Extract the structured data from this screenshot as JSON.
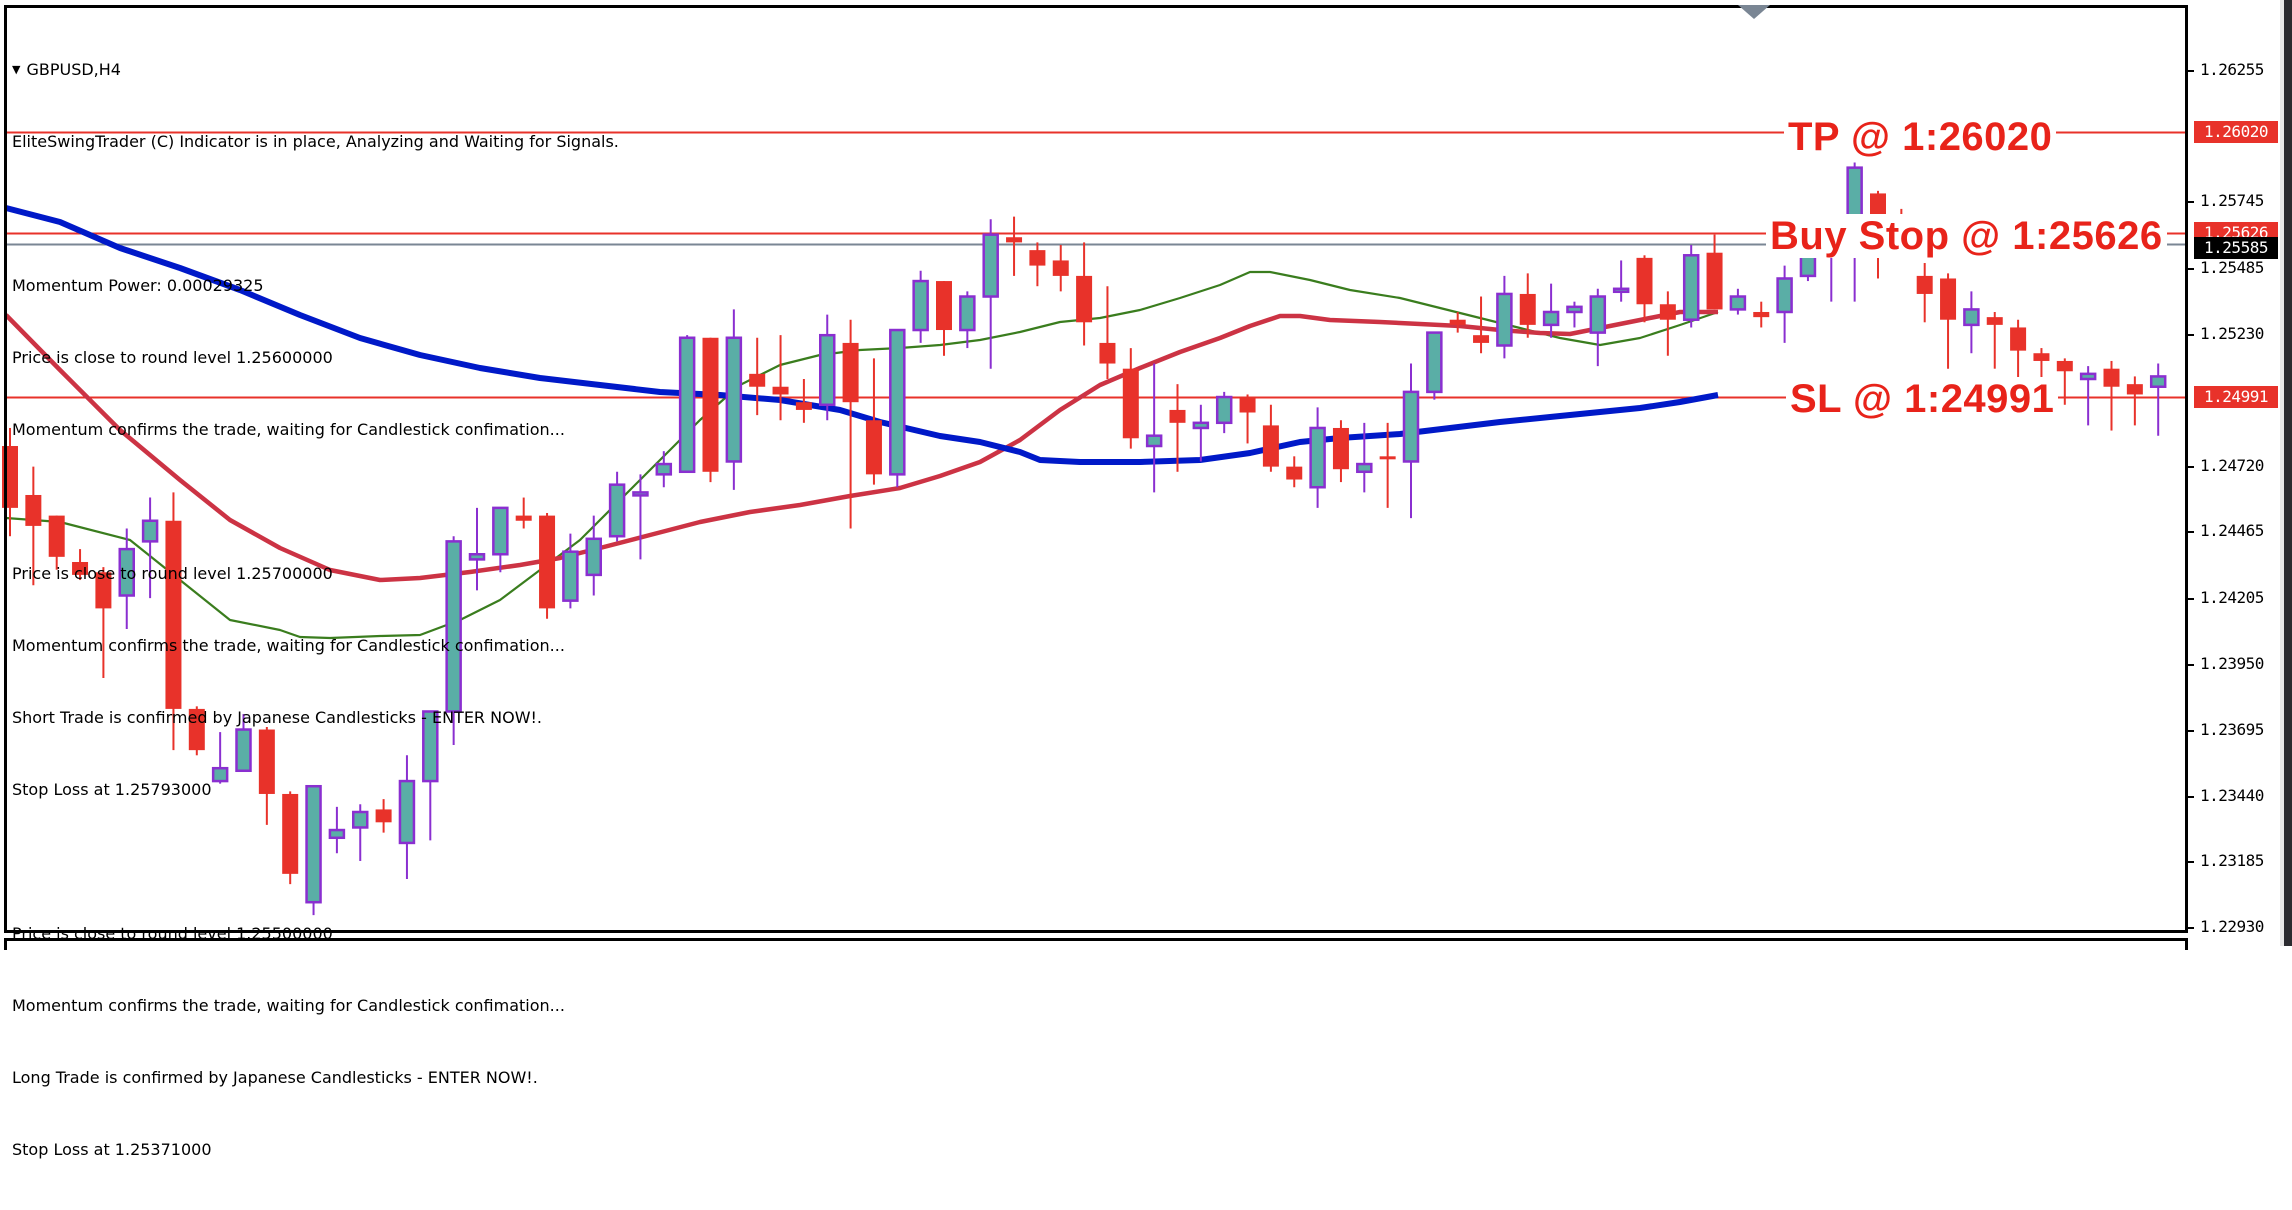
{
  "window": {
    "symbol": "GBPUSD",
    "timeframe": "H4",
    "title": "GBPUSD,H4"
  },
  "info_panel": {
    "lines": [
      "EliteSwingTrader (C) Indicator is in place, Analyzing and Waiting for Signals.",
      "",
      "Momentum Power: 0.00029325",
      "Price is close to round level 1.25600000",
      "Momentum confirms the trade, waiting for Candlestick confimation...",
      "",
      "Price is close to round level 1.25700000",
      "Momentum confirms the trade, waiting for Candlestick confimation...",
      "Short Trade is confirmed by Japanese Candlesticks - ENTER NOW!.",
      "Stop Loss at 1.25793000",
      "",
      "Price is close to round level 1.25500000",
      "Momentum confirms the trade, waiting for Candlestick confimation...",
      "Long Trade is confirmed by Japanese Candlesticks - ENTER NOW!.",
      "Stop Loss at 1.25371000"
    ]
  },
  "annotations": {
    "tp": "TP @ 1:26020",
    "buy_stop": "Buy Stop @ 1:25626",
    "sl": "SL @ 1:24991"
  },
  "price_tags": {
    "tp": "1.26020",
    "buy_stop": "1.25626",
    "bid": "1.25585",
    "sl": "1.24991"
  },
  "colors": {
    "bull_fill": "#5aaea6",
    "bull_outline": "#8a2fd0",
    "bear": "#e8322a",
    "level_line": "#e8322a",
    "bid_line": "#7a8694",
    "ma_fast": "#3a7d1e",
    "ma_mid": "#cc3344",
    "ma_slow": "#0019c8",
    "annotation_text": "#e8231a"
  },
  "chart_data": {
    "type": "candlestick",
    "title": "GBPUSD,H4",
    "xlabel": "",
    "ylabel": "",
    "ylim": [
      1.2285,
      1.2649
    ],
    "y_ticks": [
      "1.26255",
      "1.25745",
      "1.25485",
      "1.25230",
      "1.24720",
      "1.24465",
      "1.24205",
      "1.23950",
      "1.23695",
      "1.23440",
      "1.23185",
      "1.22930"
    ],
    "y_tick_values": [
      1.26255,
      1.25745,
      1.25485,
      1.2523,
      1.2472,
      1.24465,
      1.24205,
      1.2395,
      1.23695,
      1.2344,
      1.23185,
      1.2293
    ],
    "levels": [
      {
        "name": "TP",
        "price": 1.2602,
        "color": "#e8322a"
      },
      {
        "name": "Buy Stop",
        "price": 1.25626,
        "color": "#e8322a"
      },
      {
        "name": "Bid",
        "price": 1.25585,
        "color": "#7a8694"
      },
      {
        "name": "SL",
        "price": 1.24991,
        "color": "#e8322a"
      }
    ],
    "candles": [
      [
        1.248,
        1.2456,
        1.2487,
        1.2445
      ],
      [
        1.2461,
        1.2449,
        1.2472,
        1.2426
      ],
      [
        1.2453,
        1.2437,
        1.2453,
        1.2432
      ],
      [
        1.2435,
        1.243,
        1.244,
        1.2428
      ],
      [
        1.2431,
        1.2417,
        1.2433,
        1.239
      ],
      [
        1.2422,
        1.244,
        1.2448,
        1.2409
      ],
      [
        1.2443,
        1.2451,
        1.246,
        1.2421
      ],
      [
        1.2451,
        1.2378,
        1.2462,
        1.2362
      ],
      [
        1.2378,
        1.2362,
        1.2379,
        1.236
      ],
      [
        1.235,
        1.2355,
        1.2369,
        1.2349
      ],
      [
        1.2354,
        1.237,
        1.2376,
        1.237
      ],
      [
        1.237,
        1.2345,
        1.2371,
        1.2333
      ],
      [
        1.2345,
        1.2314,
        1.2346,
        1.231
      ],
      [
        1.2303,
        1.2348,
        1.2348,
        1.2298
      ],
      [
        1.2328,
        1.2331,
        1.234,
        1.2322
      ],
      [
        1.2332,
        1.2338,
        1.2341,
        1.2319
      ],
      [
        1.2339,
        1.2334,
        1.2343,
        1.233
      ],
      [
        1.2326,
        1.235,
        1.236,
        1.2312
      ],
      [
        1.235,
        1.2377,
        1.2377,
        1.2327
      ],
      [
        1.2377,
        1.2443,
        1.2445,
        1.2364
      ],
      [
        1.2436,
        1.2438,
        1.2456,
        1.2424
      ],
      [
        1.2438,
        1.2456,
        1.2456,
        1.2431
      ],
      [
        1.2453,
        1.2451,
        1.246,
        1.2448
      ],
      [
        1.2453,
        1.2417,
        1.2454,
        1.2413
      ],
      [
        1.242,
        1.2439,
        1.2446,
        1.2417
      ],
      [
        1.243,
        1.2444,
        1.2453,
        1.2422
      ],
      [
        1.2445,
        1.2465,
        1.247,
        1.2443
      ],
      [
        1.2462,
        1.2462,
        1.2469,
        1.2436
      ],
      [
        1.2469,
        1.2473,
        1.2478,
        1.2464
      ],
      [
        1.247,
        1.2522,
        1.2523,
        1.247
      ],
      [
        1.2522,
        1.247,
        1.2522,
        1.2466
      ],
      [
        1.2474,
        1.2522,
        1.2533,
        1.2463
      ],
      [
        1.2508,
        1.2503,
        1.2522,
        1.2492
      ],
      [
        1.2503,
        1.25,
        1.2523,
        1.249
      ],
      [
        1.2497,
        1.2494,
        1.2506,
        1.2489
      ],
      [
        1.2496,
        1.2523,
        1.2531,
        1.249
      ],
      [
        1.252,
        1.2497,
        1.2529,
        1.2448
      ],
      [
        1.249,
        1.2469,
        1.2514,
        1.2465
      ],
      [
        1.2469,
        1.2525,
        1.2525,
        1.2464
      ],
      [
        1.2525,
        1.2544,
        1.2548,
        1.252
      ],
      [
        1.2544,
        1.2525,
        1.2544,
        1.2515
      ],
      [
        1.2525,
        1.2538,
        1.254,
        1.2518
      ],
      [
        1.2538,
        1.2562,
        1.2568,
        1.251
      ],
      [
        1.2561,
        1.2559,
        1.2569,
        1.2546
      ],
      [
        1.2556,
        1.255,
        1.2559,
        1.2542
      ],
      [
        1.2552,
        1.2546,
        1.2558,
        1.254
      ],
      [
        1.2546,
        1.2528,
        1.2559,
        1.2519
      ],
      [
        1.252,
        1.2512,
        1.2542,
        1.2506
      ],
      [
        1.251,
        1.2483,
        1.2518,
        1.2479
      ],
      [
        1.248,
        1.2484,
        1.2512,
        1.2462
      ],
      [
        1.2494,
        1.2489,
        1.2504,
        1.247
      ],
      [
        1.2487,
        1.2489,
        1.2496,
        1.2474
      ],
      [
        1.2489,
        1.2499,
        1.2501,
        1.2485
      ],
      [
        1.2499,
        1.2493,
        1.25,
        1.2481
      ],
      [
        1.2488,
        1.2472,
        1.2496,
        1.247
      ],
      [
        1.2472,
        1.2467,
        1.2476,
        1.2464
      ],
      [
        1.2464,
        1.2487,
        1.2495,
        1.2456
      ],
      [
        1.2487,
        1.2471,
        1.249,
        1.2466
      ],
      [
        1.247,
        1.2473,
        1.2489,
        1.2462
      ],
      [
        1.2476,
        1.2475,
        1.2489,
        1.2456
      ],
      [
        1.2474,
        1.2501,
        1.2512,
        1.2452
      ],
      [
        1.2501,
        1.2524,
        1.2524,
        1.2498
      ],
      [
        1.2529,
        1.2527,
        1.2532,
        1.2524
      ],
      [
        1.2523,
        1.252,
        1.2538,
        1.2516
      ],
      [
        1.2519,
        1.2539,
        1.2546,
        1.2514
      ],
      [
        1.2539,
        1.2527,
        1.2547,
        1.2522
      ],
      [
        1.2527,
        1.2532,
        1.2543,
        1.2522
      ],
      [
        1.2532,
        1.2534,
        1.2536,
        1.2526
      ],
      [
        1.2524,
        1.2538,
        1.2541,
        1.2511
      ],
      [
        1.254,
        1.2541,
        1.2552,
        1.2536
      ],
      [
        1.2553,
        1.2535,
        1.2554,
        1.2528
      ],
      [
        1.2535,
        1.2529,
        1.254,
        1.2515
      ],
      [
        1.2529,
        1.2554,
        1.2558,
        1.2526
      ],
      [
        1.2555,
        1.2533,
        1.2562,
        1.2533
      ],
      [
        1.2533,
        1.2538,
        1.2541,
        1.2531
      ],
      [
        1.2532,
        1.253,
        1.2536,
        1.2526
      ],
      [
        1.2532,
        1.2545,
        1.255,
        1.252
      ],
      [
        1.2546,
        1.2562,
        1.2565,
        1.2544
      ],
      [
        1.2562,
        1.2568,
        1.2568,
        1.2536
      ],
      [
        1.2562,
        1.2588,
        1.259,
        1.2536
      ],
      [
        1.2578,
        1.2563,
        1.2579,
        1.2545
      ],
      [
        1.2566,
        1.2564,
        1.2572,
        1.2555
      ],
      [
        1.2546,
        1.2539,
        1.2551,
        1.2528
      ],
      [
        1.2545,
        1.2529,
        1.2547,
        1.251
      ],
      [
        1.2527,
        1.2533,
        1.254,
        1.2516
      ],
      [
        1.253,
        1.2527,
        1.2532,
        1.251
      ],
      [
        1.2526,
        1.2517,
        1.2529,
        1.2496
      ],
      [
        1.2516,
        1.2513,
        1.2518,
        1.2505
      ],
      [
        1.2513,
        1.2509,
        1.2514,
        1.2496
      ],
      [
        1.2506,
        1.2508,
        1.2511,
        1.2488
      ],
      [
        1.251,
        1.2503,
        1.2513,
        1.2486
      ],
      [
        1.2504,
        1.25,
        1.2507,
        1.2488
      ],
      [
        1.2503,
        1.2507,
        1.2512,
        1.2484
      ]
    ]
  }
}
